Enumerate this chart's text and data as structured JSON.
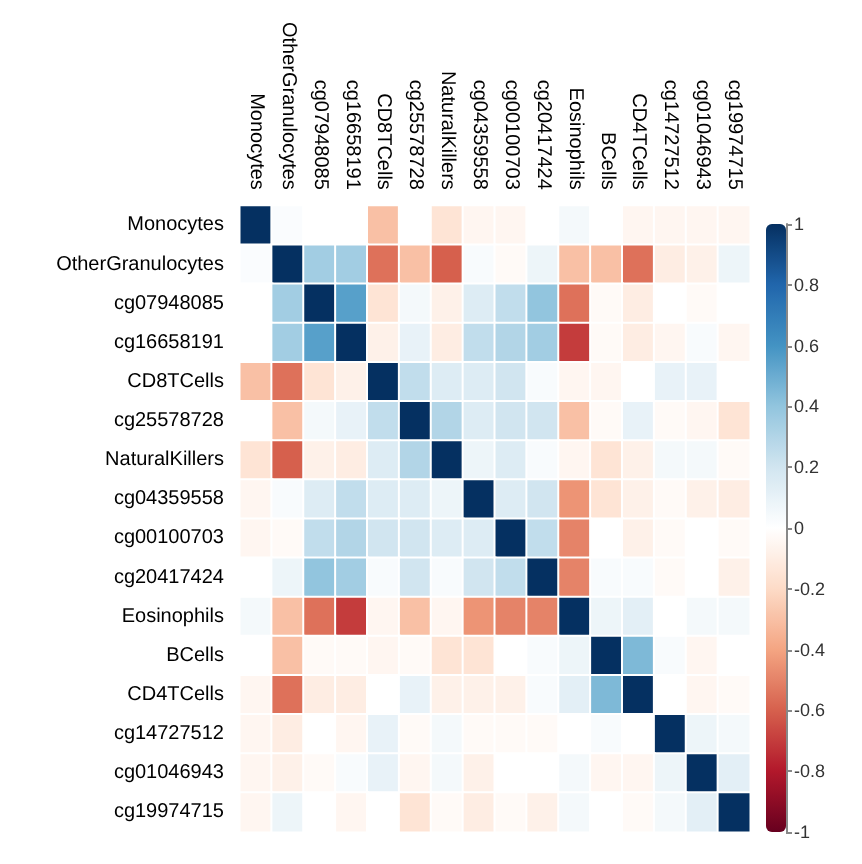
{
  "chart_data": {
    "type": "heatmap",
    "categories": [
      "Monocytes",
      "OtherGranulocytes",
      "cg07948085",
      "cg16658191",
      "CD8TCells",
      "cg25578728",
      "NaturalKillers",
      "cg04359558",
      "cg00100703",
      "cg20417424",
      "Eosinophils",
      "BCells",
      "CD4TCells",
      "cg14727512",
      "cg01046943",
      "cg19974715"
    ],
    "y_categories": [
      "Monocytes",
      "OtherGranulocytes",
      "cg07948085",
      "cg16658191",
      "CD8TCells",
      "cg25578728",
      "NaturalKillers",
      "cg04359558",
      "cg00100703",
      "cg20417424",
      "Eosinophils",
      "BCells",
      "CD4TCells",
      "cg14727512",
      "cg01046943",
      "cg19974715"
    ],
    "cells": [
      [
        1,
        0.02,
        0,
        0,
        -0.3,
        0,
        -0.15,
        -0.05,
        -0.05,
        0,
        0.05,
        0,
        -0.05,
        -0.05,
        -0.05,
        -0.05
      ],
      [
        0.02,
        1,
        0.35,
        0.35,
        -0.55,
        -0.3,
        -0.6,
        0.03,
        -0.03,
        0.08,
        -0.3,
        -0.3,
        -0.55,
        -0.1,
        -0.08,
        0.08
      ],
      [
        0,
        0.35,
        1,
        0.55,
        -0.15,
        0.05,
        -0.08,
        0.15,
        0.25,
        0.4,
        -0.55,
        -0.03,
        -0.1,
        0,
        -0.03,
        0
      ],
      [
        0,
        0.35,
        0.55,
        1,
        -0.08,
        0.1,
        -0.1,
        0.25,
        0.3,
        0.35,
        -0.7,
        -0.03,
        -0.1,
        -0.05,
        0.03,
        -0.05
      ],
      [
        -0.3,
        -0.55,
        -0.15,
        -0.08,
        1,
        0.25,
        0.15,
        0.15,
        0.2,
        0.03,
        -0.05,
        -0.05,
        0,
        0.1,
        0.1,
        0
      ],
      [
        0,
        -0.3,
        0.05,
        0.1,
        0.25,
        1,
        0.3,
        0.15,
        0.2,
        0.2,
        -0.3,
        -0.03,
        0.1,
        -0.03,
        -0.05,
        -0.15
      ],
      [
        -0.15,
        -0.6,
        -0.08,
        -0.1,
        0.15,
        0.3,
        1,
        0.08,
        0.15,
        0.03,
        -0.05,
        -0.15,
        -0.08,
        0.05,
        0.05,
        -0.03
      ],
      [
        -0.05,
        0.03,
        0.15,
        0.25,
        0.15,
        0.15,
        0.08,
        1,
        0.15,
        0.2,
        -0.45,
        -0.15,
        -0.08,
        -0.03,
        -0.08,
        -0.1
      ],
      [
        -0.05,
        -0.03,
        0.25,
        0.3,
        0.2,
        0.2,
        0.15,
        0.15,
        1,
        0.25,
        -0.5,
        0,
        -0.08,
        -0.03,
        0,
        -0.03
      ],
      [
        0,
        0.08,
        0.4,
        0.35,
        0.03,
        0.2,
        0.03,
        0.2,
        0.25,
        1,
        -0.5,
        0.03,
        0.03,
        -0.03,
        0,
        -0.08
      ],
      [
        0.05,
        -0.3,
        -0.55,
        -0.7,
        -0.05,
        -0.3,
        -0.05,
        -0.45,
        -0.5,
        -0.5,
        1,
        0.08,
        0.12,
        0,
        0.05,
        0.05
      ],
      [
        0,
        -0.3,
        -0.03,
        -0.03,
        -0.05,
        -0.03,
        -0.15,
        -0.15,
        0,
        0.03,
        0.08,
        1,
        0.45,
        0.03,
        -0.05,
        0
      ],
      [
        -0.05,
        -0.55,
        -0.1,
        -0.1,
        0,
        0.1,
        -0.08,
        -0.08,
        -0.08,
        0.03,
        0.12,
        0.45,
        1,
        0,
        -0.05,
        -0.03
      ],
      [
        -0.05,
        -0.1,
        0,
        -0.05,
        0.1,
        -0.03,
        0.05,
        -0.03,
        -0.03,
        -0.03,
        0,
        0.03,
        0,
        1,
        0.08,
        0.05
      ],
      [
        -0.05,
        -0.08,
        -0.03,
        0.03,
        0.1,
        -0.05,
        0.05,
        -0.08,
        0,
        0,
        0.05,
        -0.05,
        -0.05,
        0.08,
        1,
        0.12
      ],
      [
        -0.05,
        0.08,
        0,
        -0.05,
        0,
        -0.15,
        -0.03,
        -0.1,
        -0.03,
        -0.08,
        0.05,
        0,
        -0.03,
        0.05,
        0.12,
        1
      ]
    ],
    "clim": [
      -1,
      1
    ],
    "cticks": [
      -1,
      -0.8,
      -0.6,
      -0.4,
      -0.2,
      0,
      0.2,
      0.4,
      0.6,
      0.8,
      1
    ]
  }
}
